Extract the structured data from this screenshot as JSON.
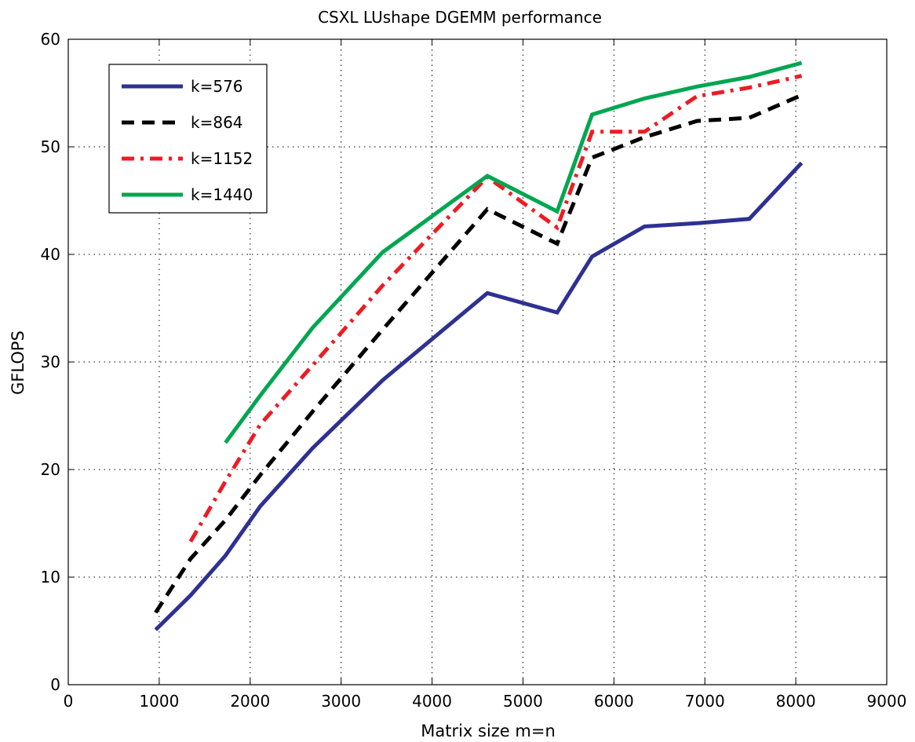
{
  "chart_data": {
    "type": "line",
    "title": "CSXL LUshape DGEMM performance",
    "xlabel": "Matrix size m=n",
    "ylabel": "GFLOPS",
    "xlim": [
      0,
      9000
    ],
    "ylim": [
      0,
      60
    ],
    "xticks": [
      0,
      1000,
      2000,
      3000,
      4000,
      5000,
      6000,
      7000,
      8000,
      9000
    ],
    "yticks": [
      0,
      10,
      20,
      30,
      40,
      50,
      60
    ],
    "grid": true,
    "legend_position": "top-left",
    "series": [
      {
        "name": "k=576",
        "color": "#2e3192",
        "style": "solid",
        "x": [
          960,
          1344,
          1728,
          2112,
          2688,
          3456,
          4608,
          5376,
          5760,
          6336,
          6912,
          7488,
          8064
        ],
        "y": [
          5.1,
          8.3,
          12.0,
          16.6,
          22.0,
          28.3,
          36.4,
          34.6,
          39.8,
          42.6,
          42.9,
          43.3,
          48.5
        ]
      },
      {
        "name": "k=864",
        "color": "#000000",
        "style": "dashed",
        "x": [
          960,
          1344,
          1728,
          2112,
          2688,
          3456,
          4608,
          5376,
          5760,
          6336,
          6912,
          7488,
          8064
        ],
        "y": [
          6.7,
          11.7,
          15.3,
          19.5,
          25.4,
          33.0,
          44.2,
          41.0,
          49.0,
          50.9,
          52.4,
          52.7,
          54.8
        ]
      },
      {
        "name": "k=1152",
        "color": "#ed1c24",
        "style": "dashdot",
        "x": [
          1344,
          1728,
          2112,
          2688,
          3456,
          4608,
          5376,
          5760,
          6336,
          6912,
          7488,
          8064
        ],
        "y": [
          13.3,
          18.9,
          24.2,
          29.7,
          37.1,
          47.2,
          42.5,
          51.4,
          51.4,
          54.7,
          55.5,
          56.6
        ]
      },
      {
        "name": "k=1440",
        "color": "#00a650",
        "style": "solid",
        "x": [
          1728,
          2112,
          2688,
          3456,
          4608,
          5376,
          5760,
          6336,
          6912,
          7488,
          8064
        ],
        "y": [
          22.5,
          26.9,
          33.2,
          40.2,
          47.3,
          44.0,
          53.0,
          54.5,
          55.6,
          56.5,
          57.8
        ]
      }
    ]
  }
}
